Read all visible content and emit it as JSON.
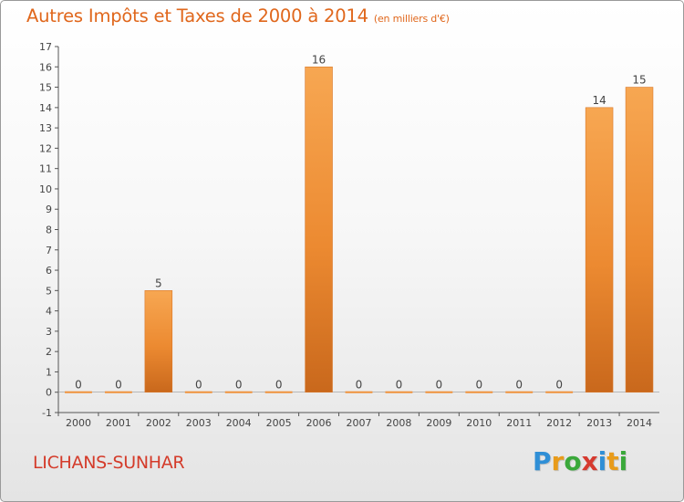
{
  "title": "Autres Impôts et Taxes de 2000 à 2014",
  "subtitle": "(en milliers d'€)",
  "location": "LICHANS-SUNHAR",
  "brand": {
    "letters": [
      "P",
      "r",
      "o",
      "x",
      "i",
      "t",
      "i"
    ],
    "colors": [
      "#2f8fd6",
      "#e89b1a",
      "#3aa83a",
      "#d63a2f",
      "#2f8fd6",
      "#e89b1a",
      "#3aa83a"
    ]
  },
  "chart_data": {
    "type": "bar",
    "categories": [
      "2000",
      "2001",
      "2002",
      "2003",
      "2004",
      "2005",
      "2006",
      "2007",
      "2008",
      "2009",
      "2010",
      "2011",
      "2012",
      "2013",
      "2014"
    ],
    "values": [
      0,
      0,
      5,
      0,
      0,
      0,
      16,
      0,
      0,
      0,
      0,
      0,
      0,
      14,
      15
    ],
    "data_labels": [
      "0",
      "0",
      "5",
      "0",
      "0",
      "0",
      "16",
      "0",
      "0",
      "0",
      "0",
      "0",
      "0",
      "14",
      "15"
    ],
    "ylim": [
      -1,
      17
    ],
    "yticks": [
      -1,
      0,
      1,
      2,
      3,
      4,
      5,
      6,
      7,
      8,
      9,
      10,
      11,
      12,
      13,
      14,
      15,
      16,
      17
    ],
    "grid": false,
    "bar_color": "#f0913a",
    "bar_color_dark": "#c9681c"
  }
}
